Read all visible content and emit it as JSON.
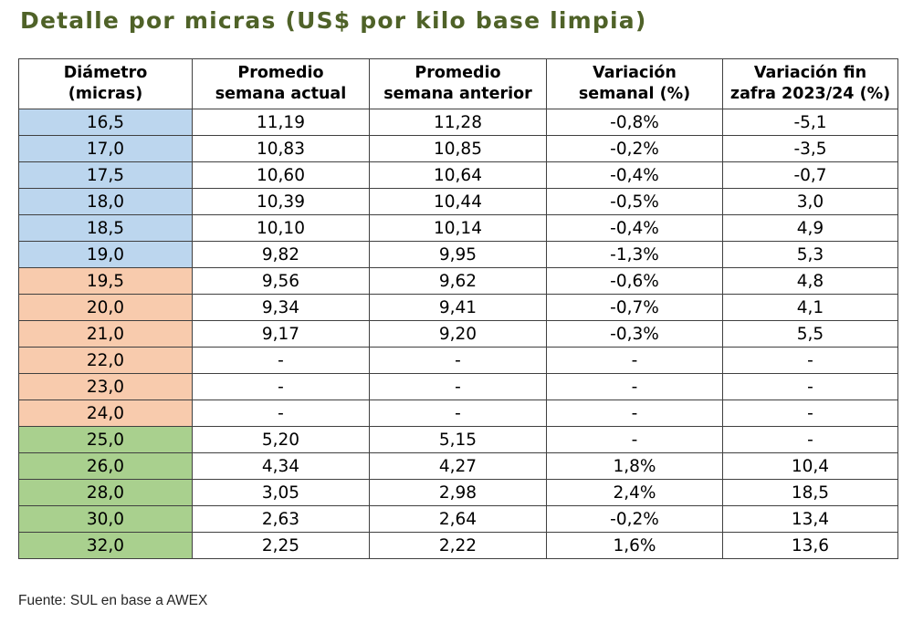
{
  "title": "Detalle por micras (US$ por kilo base limpia)",
  "colors": {
    "title": "#4f6228",
    "group_fine": "#bcd6ee",
    "group_medium": "#f8cbad",
    "group_coarse": "#a9d08e"
  },
  "table": {
    "headers": [
      [
        "Diámetro",
        "(micras)"
      ],
      [
        "Promedio",
        "semana actual"
      ],
      [
        "Promedio",
        "semana anterior"
      ],
      [
        "Variación",
        "semanal (%)"
      ],
      [
        "Variación fin",
        "zafra 2023/24 (%)"
      ]
    ],
    "rows": [
      [
        "16,5",
        "11,19",
        "11,28",
        "-0,8%",
        "-5,1"
      ],
      [
        "17,0",
        "10,83",
        "10,85",
        "-0,2%",
        "-3,5"
      ],
      [
        "17,5",
        "10,60",
        "10,64",
        "-0,4%",
        "-0,7"
      ],
      [
        "18,0",
        "10,39",
        "10,44",
        "-0,5%",
        "3,0"
      ],
      [
        "18,5",
        "10,10",
        "10,14",
        "-0,4%",
        "4,9"
      ],
      [
        "19,0",
        "9,82",
        "9,95",
        "-1,3%",
        "5,3"
      ],
      [
        "19,5",
        "9,56",
        "9,62",
        "-0,6%",
        "4,8"
      ],
      [
        "20,0",
        "9,34",
        "9,41",
        "-0,7%",
        "4,1"
      ],
      [
        "21,0",
        "9,17",
        "9,20",
        "-0,3%",
        "5,5"
      ],
      [
        "22,0",
        "-",
        "-",
        "-",
        "-"
      ],
      [
        "23,0",
        "-",
        "-",
        "-",
        "-"
      ],
      [
        "24,0",
        "-",
        "-",
        "-",
        "-"
      ],
      [
        "25,0",
        "5,20",
        "5,15",
        "-",
        "-"
      ],
      [
        "26,0",
        "4,34",
        "4,27",
        "1,8%",
        "10,4"
      ],
      [
        "28,0",
        "3,05",
        "2,98",
        "2,4%",
        "18,5"
      ],
      [
        "30,0",
        "2,63",
        "2,64",
        "-0,2%",
        "13,4"
      ],
      [
        "32,0",
        "2,25",
        "2,22",
        "1,6%",
        "13,6"
      ]
    ]
  },
  "footer": "Fuente: SUL en base a AWEX"
}
